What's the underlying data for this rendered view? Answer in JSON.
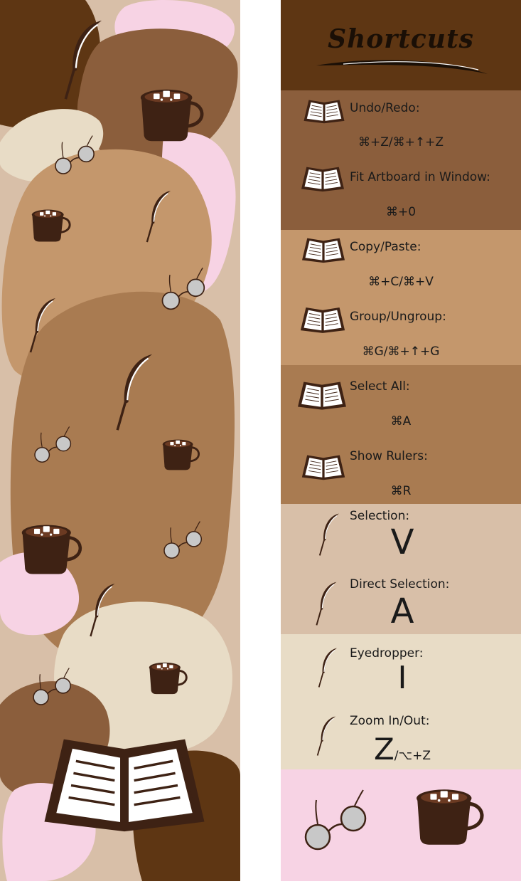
{
  "colors": {
    "dark_brown": "#5e3613",
    "mid_brown": "#8b5e3c",
    "tan": "#c4976c",
    "cocoa": "#a97b51",
    "beige": "#d8bfa8",
    "cream": "#e8dcc6",
    "pink": "#f7d3e4",
    "cup": "#3e2214"
  },
  "panel": {
    "title": "Shortcuts",
    "rows": [
      {
        "label": "Undo/Redo:",
        "keys": "⌘+Z/⌘+↑+Z",
        "icon": "book-icon"
      },
      {
        "label": "Fit Artboard in Window:",
        "keys": "⌘+0",
        "icon": "book-icon"
      },
      {
        "label": "Copy/Paste:",
        "keys": "⌘+C/⌘+V",
        "icon": "book-icon"
      },
      {
        "label": "Group/Ungroup:",
        "keys": "⌘G/⌘+↑+G",
        "icon": "book-icon"
      },
      {
        "label": "Select All:",
        "keys": "⌘A",
        "icon": "book-icon"
      },
      {
        "label": "Show Rulers:",
        "keys": "⌘R",
        "icon": "book-icon"
      }
    ],
    "tools": [
      {
        "label": "Selection:",
        "key": "V",
        "icon": "quill-icon"
      },
      {
        "label": "Direct Selection:",
        "key": "A",
        "icon": "quill-icon"
      },
      {
        "label": "Eyedropper:",
        "key": "I",
        "icon": "quill-icon"
      },
      {
        "label": "Zoom In/Out:",
        "key": "Z",
        "key_suffix": "/⌥+Z",
        "icon": "quill-icon"
      }
    ],
    "footer_icons": [
      "glasses-icon",
      "hot-chocolate-icon"
    ]
  }
}
